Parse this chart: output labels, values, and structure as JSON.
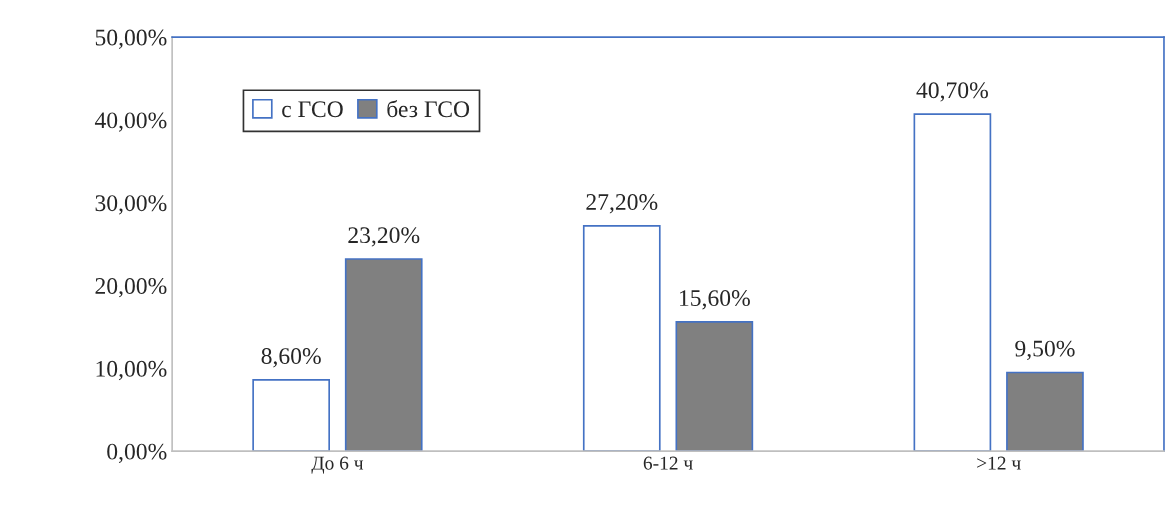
{
  "chart_data": {
    "type": "bar",
    "categories": [
      "До 6 ч",
      "6-12 ч",
      ">12 ч"
    ],
    "series": [
      {
        "name": "с ГСО",
        "color": "#ffffff",
        "values": [
          8.6,
          27.2,
          40.7
        ],
        "value_labels": [
          "8,60%",
          "27,20%",
          "40,70%"
        ]
      },
      {
        "name": "без ГСО",
        "color": "#808080",
        "values": [
          23.2,
          15.6,
          9.5
        ],
        "value_labels": [
          "23,20%",
          "15,60%",
          "9,50%"
        ]
      }
    ],
    "ylim": [
      0,
      50
    ],
    "yticks": [
      {
        "value": 0,
        "label": "0,00%"
      },
      {
        "value": 10,
        "label": "10,00%"
      },
      {
        "value": 20,
        "label": "20,00%"
      },
      {
        "value": 30,
        "label": "30,00%"
      },
      {
        "value": 40,
        "label": "40,00%"
      },
      {
        "value": 50,
        "label": "50,00%"
      }
    ],
    "legend": "top left",
    "grid": false
  }
}
